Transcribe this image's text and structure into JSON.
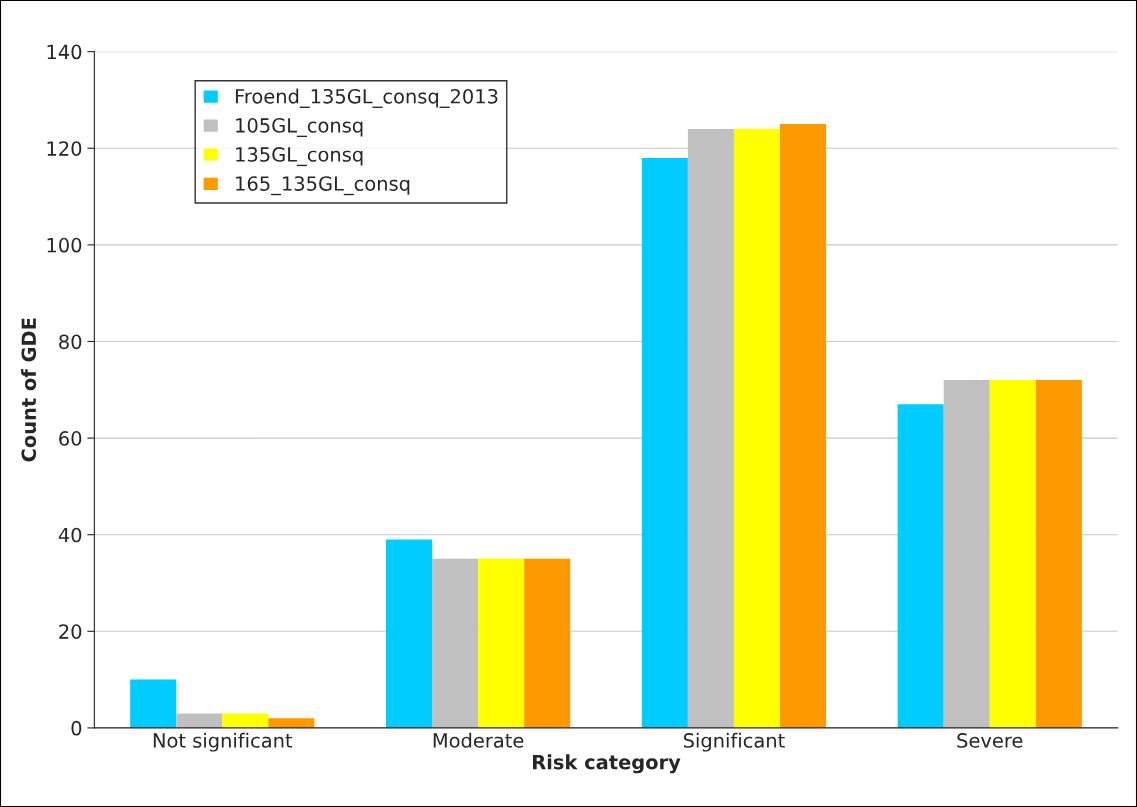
{
  "chart_data": {
    "type": "bar",
    "xlabel": "Risk category",
    "ylabel": "Count of GDE",
    "categories": [
      "Not significant",
      "Moderate",
      "Significant",
      "Severe"
    ],
    "series": [
      {
        "name": "Froend_135GL_consq_2013",
        "color": "#00ccff",
        "values": [
          10,
          39,
          118,
          67
        ]
      },
      {
        "name": "105GL_consq",
        "color": "#c0c0c0",
        "values": [
          3,
          35,
          124,
          72
        ]
      },
      {
        "name": "135GL_consq",
        "color": "#ffff00",
        "values": [
          3,
          35,
          124,
          72
        ]
      },
      {
        "name": "165_135GL_consq",
        "color": "#ff9900",
        "values": [
          2,
          35,
          125,
          72
        ]
      }
    ],
    "ylim": [
      0,
      140
    ],
    "yticks": [
      0,
      20,
      40,
      60,
      80,
      100,
      120,
      140
    ],
    "grid": "y",
    "legend": "top left"
  }
}
